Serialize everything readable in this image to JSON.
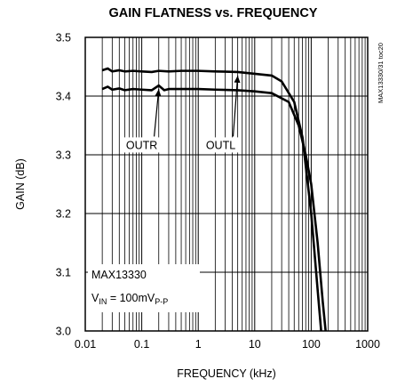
{
  "chart_data": {
    "type": "line",
    "title": "GAIN FLATNESS vs. FREQUENCY",
    "xlabel": "FREQUENCY (kHz)",
    "ylabel": "GAIN (dB)",
    "xscale": "log",
    "xlim": [
      0.01,
      1000
    ],
    "ylim": [
      3.0,
      3.5
    ],
    "grid": true,
    "x_ticks": [
      "0.01",
      "0.1",
      "1",
      "10",
      "100",
      "1000"
    ],
    "y_ticks": [
      "3.0",
      "3.1",
      "3.2",
      "3.3",
      "3.4",
      "3.5"
    ],
    "side_label": "MAX13330/31 toc20",
    "annotations": {
      "part": "MAX13330",
      "vin_prefix": "V",
      "vin_sub": "IN",
      "vin_mid": " = 100mV",
      "vin_sub2": "P-P"
    },
    "series": [
      {
        "name": "OUTL",
        "points": [
          [
            0.02,
            3.444
          ],
          [
            0.025,
            3.447
          ],
          [
            0.03,
            3.442
          ],
          [
            0.04,
            3.444
          ],
          [
            0.05,
            3.442
          ],
          [
            0.07,
            3.443
          ],
          [
            0.1,
            3.442
          ],
          [
            0.15,
            3.441
          ],
          [
            0.2,
            3.443
          ],
          [
            0.3,
            3.442
          ],
          [
            0.5,
            3.443
          ],
          [
            1,
            3.443
          ],
          [
            2,
            3.442
          ],
          [
            5,
            3.441
          ],
          [
            10,
            3.438
          ],
          [
            20,
            3.435
          ],
          [
            30,
            3.425
          ],
          [
            50,
            3.39
          ],
          [
            70,
            3.33
          ],
          [
            100,
            3.2
          ],
          [
            130,
            3.07
          ],
          [
            150,
            3.0
          ]
        ]
      },
      {
        "name": "OUTR",
        "points": [
          [
            0.02,
            3.412
          ],
          [
            0.025,
            3.416
          ],
          [
            0.03,
            3.411
          ],
          [
            0.04,
            3.413
          ],
          [
            0.05,
            3.41
          ],
          [
            0.07,
            3.412
          ],
          [
            0.1,
            3.411
          ],
          [
            0.15,
            3.41
          ],
          [
            0.2,
            3.418
          ],
          [
            0.25,
            3.41
          ],
          [
            0.3,
            3.412
          ],
          [
            0.5,
            3.412
          ],
          [
            1,
            3.412
          ],
          [
            2,
            3.411
          ],
          [
            5,
            3.41
          ],
          [
            10,
            3.408
          ],
          [
            20,
            3.405
          ],
          [
            40,
            3.39
          ],
          [
            60,
            3.35
          ],
          [
            80,
            3.3
          ],
          [
            100,
            3.25
          ],
          [
            130,
            3.15
          ],
          [
            160,
            3.05
          ],
          [
            180,
            3.0
          ]
        ]
      }
    ],
    "callouts": [
      {
        "series": "OUTR",
        "label": "OUTR",
        "label_at": [
          0.1,
          3.31
        ],
        "arrow_to": [
          0.2,
          3.418
        ]
      },
      {
        "series": "OUTL",
        "label": "OUTL",
        "label_at": [
          2.5,
          3.31
        ],
        "arrow_to": [
          5,
          3.441
        ]
      }
    ]
  }
}
